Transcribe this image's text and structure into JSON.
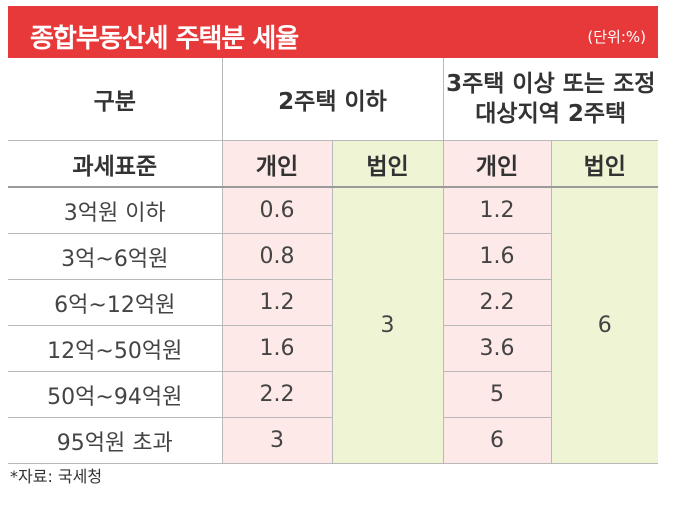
{
  "title": "종합부동산세 주택분 세율",
  "unit": "(단위:%)",
  "header": {
    "category": "구분",
    "group1": "2주택 이하",
    "group2": "3주택 이상 또는 조정대상지역 2주택",
    "tax_base": "과세표준",
    "individual": "개인",
    "corporation": "법인"
  },
  "rows": [
    {
      "base": "3억원 이하",
      "g1_individual": "0.6",
      "g2_individual": "1.2"
    },
    {
      "base": "3억~6억원",
      "g1_individual": "0.8",
      "g2_individual": "1.6"
    },
    {
      "base": "6억~12억원",
      "g1_individual": "1.2",
      "g2_individual": "2.2"
    },
    {
      "base": "12억~50억원",
      "g1_individual": "1.6",
      "g2_individual": "3.6"
    },
    {
      "base": "50억~94억원",
      "g1_individual": "2.2",
      "g2_individual": "5"
    },
    {
      "base": "95억원 초과",
      "g1_individual": "3",
      "g2_individual": "6"
    }
  ],
  "g1_corporation": "3",
  "g2_corporation": "6",
  "source": "*자료: 국세청",
  "colors": {
    "accent": "#e8393a",
    "pink": "#fde9e8",
    "green": "#eef4d4"
  }
}
